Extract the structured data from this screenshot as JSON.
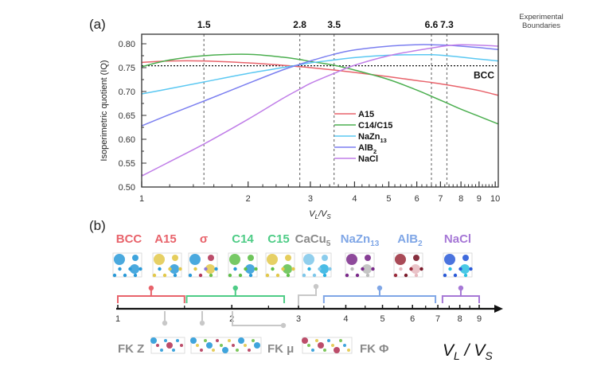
{
  "panel_a_label": "(a)",
  "panel_b_label": "(b)",
  "chart_data": [
    {
      "type": "line",
      "title": "",
      "xlabel": "VL/VS",
      "ylabel": "Isoperimetric quotient (IQ)",
      "xscale": "log",
      "xlim": [
        1,
        10.2
      ],
      "ylim": [
        0.5,
        0.82
      ],
      "x_ticks": [
        1,
        2,
        3,
        4,
        5,
        6,
        7,
        8,
        9,
        10
      ],
      "y_ticks": [
        "0.50",
        "0.55",
        "0.60",
        "0.65",
        "0.70",
        "0.75",
        "0.80"
      ],
      "legend_position": "center",
      "x": [
        1.0,
        1.2,
        1.5,
        2.0,
        2.5,
        2.8,
        3.0,
        3.5,
        4.0,
        5.0,
        6.0,
        6.6,
        7.3,
        8.0,
        9.0,
        10.2
      ],
      "series": [
        {
          "name": "A15",
          "color": "#e8636b",
          "values": [
            0.761,
            0.764,
            0.764,
            0.76,
            0.755,
            0.752,
            0.75,
            0.745,
            0.74,
            0.731,
            0.723,
            0.719,
            0.714,
            0.709,
            0.702,
            0.692
          ]
        },
        {
          "name": "C14/C15",
          "color": "#4caf50",
          "values": [
            0.752,
            0.766,
            0.775,
            0.778,
            0.772,
            0.767,
            0.763,
            0.755,
            0.745,
            0.725,
            0.703,
            0.69,
            0.676,
            0.663,
            0.648,
            0.632
          ]
        },
        {
          "name": "NaZn13",
          "name_sub": "13",
          "name_base": "NaZn",
          "color": "#5bc8f2",
          "values": [
            0.695,
            0.706,
            0.72,
            0.738,
            0.75,
            0.756,
            0.76,
            0.766,
            0.771,
            0.776,
            0.777,
            0.777,
            0.775,
            0.772,
            0.768,
            0.764
          ]
        },
        {
          "name": "AlB2",
          "name_sub": "2",
          "name_base": "AlB",
          "color": "#7b7ff0",
          "values": [
            0.628,
            0.652,
            0.68,
            0.717,
            0.745,
            0.757,
            0.764,
            0.778,
            0.787,
            0.795,
            0.798,
            0.798,
            0.797,
            0.795,
            0.792,
            0.788
          ]
        },
        {
          "name": "NaCl",
          "color": "#c07ee8",
          "values": [
            0.523,
            0.553,
            0.59,
            0.642,
            0.685,
            0.705,
            0.717,
            0.738,
            0.755,
            0.775,
            0.786,
            0.791,
            0.796,
            0.798,
            0.797,
            0.795
          ]
        }
      ],
      "reference_line": {
        "label": "BCC",
        "value": 0.754,
        "style": "dotted"
      },
      "boundaries": {
        "label": "Experimental Boundaries",
        "values": [
          1.5,
          2.8,
          3.5,
          6.6,
          7.3
        ],
        "labels": [
          "1.5",
          "2.8",
          "3.5",
          "6.6",
          "7.3"
        ]
      }
    }
  ],
  "panel_b": {
    "axis_label_main": "V",
    "axis_label_sub_l": "L",
    "axis_label_sep": " / ",
    "axis_label_sub_s": "S",
    "axis_ticks_labels": [
      "1",
      "2",
      "3",
      "4",
      "5",
      "6",
      "7",
      "8",
      "9"
    ],
    "axis_ticks_values": [
      1,
      2,
      3,
      4,
      5,
      6,
      7,
      8,
      9
    ],
    "axis_range": [
      1,
      10.5
    ],
    "phases_top": [
      {
        "label": "BCC",
        "color": "#e8636b"
      },
      {
        "label": "A15",
        "color": "#e8636b"
      },
      {
        "label": "σ",
        "color": "#e8636b"
      },
      {
        "label": "C14",
        "color": "#4ecc86"
      },
      {
        "label": "C15",
        "color": "#4ecc86"
      },
      {
        "label": "CaCu",
        "sub": "5",
        "color": "#8a8a8a"
      },
      {
        "label": "NaZn",
        "sub": "13",
        "color": "#7fa6e6"
      },
      {
        "label": "AlB",
        "sub": "2",
        "color": "#7fa6e6"
      },
      {
        "label": "NaCl",
        "color": "#a678d6"
      }
    ],
    "brackets": [
      {
        "group": "red",
        "from": 1.0,
        "to": 1.5,
        "color": "#e8636b"
      },
      {
        "group": "green",
        "from": 1.52,
        "to": 2.75,
        "color": "#4ecc86"
      },
      {
        "group": "blue",
        "from": 3.5,
        "to": 6.9,
        "color": "#7fa6e6"
      },
      {
        "group": "purple",
        "from": 7.2,
        "to": 9.0,
        "color": "#a678d6"
      }
    ],
    "fk_phases": [
      {
        "label": "FK Z"
      },
      {
        "label": "FK μ"
      },
      {
        "label": "FK Φ"
      }
    ]
  }
}
